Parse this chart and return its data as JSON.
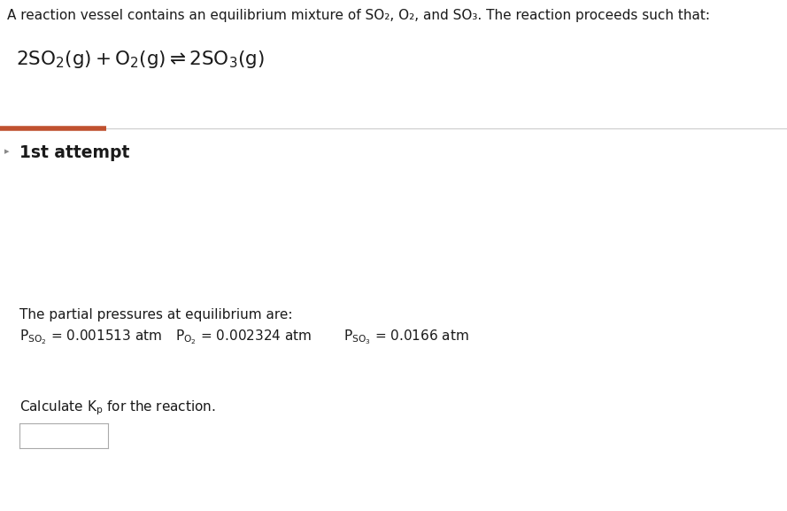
{
  "bg_color": "#ffffff",
  "top_text": "A reaction vessel contains an equilibrium mixture of SO₂, O₂, and SO₃. The reaction proceeds such that:",
  "section_label": "1st attempt",
  "orange_bar_color": "#c0512f",
  "partial_pressure_header": "The partial pressures at equilibrium are:",
  "p_so2_val": "= 0.001513 atm",
  "p_o2_val": "= 0.002324 atm",
  "p_so3_val": "= 0.0166 atm",
  "text_color": "#1a1a1a",
  "divider_color": "#cccccc",
  "box_color": "#ffffff",
  "box_border": "#aaaaaa",
  "font_size_top": 11.0,
  "font_size_reaction": 15.5,
  "font_size_section": 13.5,
  "font_size_body": 11.0,
  "fig_width": 8.89,
  "fig_height": 5.77,
  "dpi": 100
}
